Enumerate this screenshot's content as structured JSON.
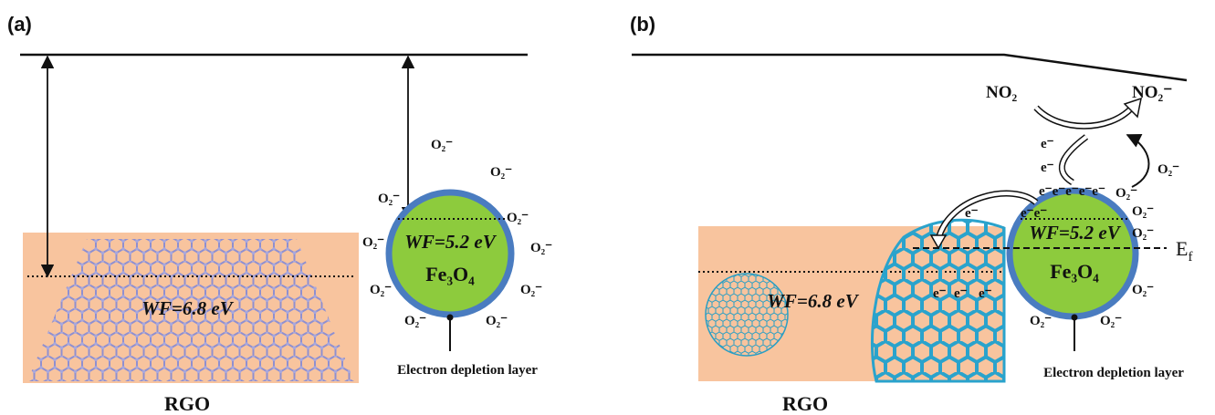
{
  "panel_a": {
    "label": "(a)",
    "rgo_work_function": "WF=6.8 eV",
    "fe3o4_work_function": "WF=5.2 eV",
    "particle": "Fe₃O₄",
    "depletion_label": "Electron depletion layer",
    "rgo_label": "RGO",
    "oxygen_labels": [
      "O₂⁻",
      "O₂⁻",
      "O₂⁻",
      "O₂⁻",
      "O₂⁻",
      "O₂⁻",
      "O₂⁻",
      "O₂⁻",
      "O₂⁻",
      "O₂⁻"
    ]
  },
  "panel_b": {
    "label": "(b)",
    "gas": "NO₂",
    "gas_ion": "NO₂⁻",
    "rgo_work_function": "WF=6.8 eV",
    "fe3o4_work_function": "WF=5.2 eV",
    "particle": "Fe₃O₄",
    "depletion_label": "Electron depletion layer",
    "rgo_label": "RGO",
    "fermi_level": {
      "main": "E",
      "sub": "f"
    },
    "oxygen_labels": [
      "O₂⁻",
      "O₂⁻",
      "O₂⁻",
      "O₂⁻",
      "O₂⁻",
      "O₂⁻",
      "O₂⁻"
    ],
    "electron_labels": [
      "e⁻",
      "e⁻",
      "e⁻e⁻e⁻e⁻e⁻",
      "e⁻",
      "e⁻e⁻",
      "e⁻",
      "e⁻",
      "e⁻"
    ]
  }
}
